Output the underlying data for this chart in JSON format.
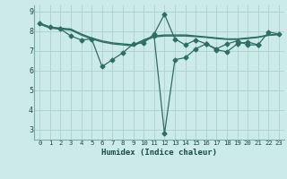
{
  "xlabel": "Humidex (Indice chaleur)",
  "ylabel": "",
  "bg_color": "#cceae8",
  "grid_color": "#b0d4d0",
  "line_color": "#2e6e64",
  "xlim": [
    -0.5,
    23.5
  ],
  "ylim": [
    2.5,
    9.3
  ],
  "yticks": [
    3,
    4,
    5,
    6,
    7,
    8,
    9
  ],
  "xticks": [
    0,
    1,
    2,
    3,
    4,
    5,
    6,
    7,
    8,
    9,
    10,
    11,
    12,
    13,
    14,
    15,
    16,
    17,
    18,
    19,
    20,
    21,
    22,
    23
  ],
  "lines": [
    {
      "x": [
        0,
        1,
        2,
        3,
        4,
        5,
        6,
        7,
        8,
        9,
        10,
        11,
        12,
        13,
        14,
        15,
        16,
        17,
        18,
        19,
        20,
        21,
        22,
        23
      ],
      "y": [
        8.4,
        8.2,
        8.15,
        8.1,
        7.85,
        7.65,
        7.5,
        7.4,
        7.35,
        7.3,
        7.55,
        7.75,
        7.8,
        7.8,
        7.8,
        7.75,
        7.7,
        7.65,
        7.6,
        7.6,
        7.65,
        7.7,
        7.8,
        7.85
      ],
      "marker": null,
      "lw": 1.0
    },
    {
      "x": [
        0,
        1,
        2,
        3,
        4,
        5,
        6,
        7,
        8,
        9,
        10,
        11,
        12,
        13,
        14,
        15,
        16,
        17,
        18,
        19,
        20,
        21,
        22,
        23
      ],
      "y": [
        8.35,
        8.15,
        8.1,
        8.05,
        7.8,
        7.6,
        7.45,
        7.35,
        7.3,
        7.25,
        7.5,
        7.7,
        7.75,
        7.75,
        7.75,
        7.72,
        7.68,
        7.62,
        7.58,
        7.58,
        7.62,
        7.68,
        7.78,
        7.82
      ],
      "marker": null,
      "lw": 1.0
    },
    {
      "x": [
        0,
        1,
        2,
        3,
        4,
        5,
        6,
        7,
        8,
        9,
        10,
        11,
        12,
        13,
        14,
        15,
        16,
        17,
        18,
        19,
        20,
        21,
        22,
        23
      ],
      "y": [
        8.4,
        8.2,
        8.1,
        7.75,
        7.55,
        7.6,
        6.2,
        6.55,
        6.9,
        7.35,
        7.4,
        7.85,
        8.85,
        7.6,
        7.3,
        7.55,
        7.35,
        7.1,
        7.35,
        7.5,
        7.3,
        7.3,
        7.95,
        7.85
      ],
      "marker": "D",
      "lw": 0.9
    },
    {
      "x": [
        11,
        12,
        13,
        14,
        15,
        16,
        17,
        18,
        19,
        20,
        21
      ],
      "y": [
        7.75,
        2.8,
        6.55,
        6.65,
        7.1,
        7.35,
        7.05,
        6.95,
        7.35,
        7.45,
        7.3
      ],
      "marker": "D",
      "lw": 0.9
    }
  ]
}
